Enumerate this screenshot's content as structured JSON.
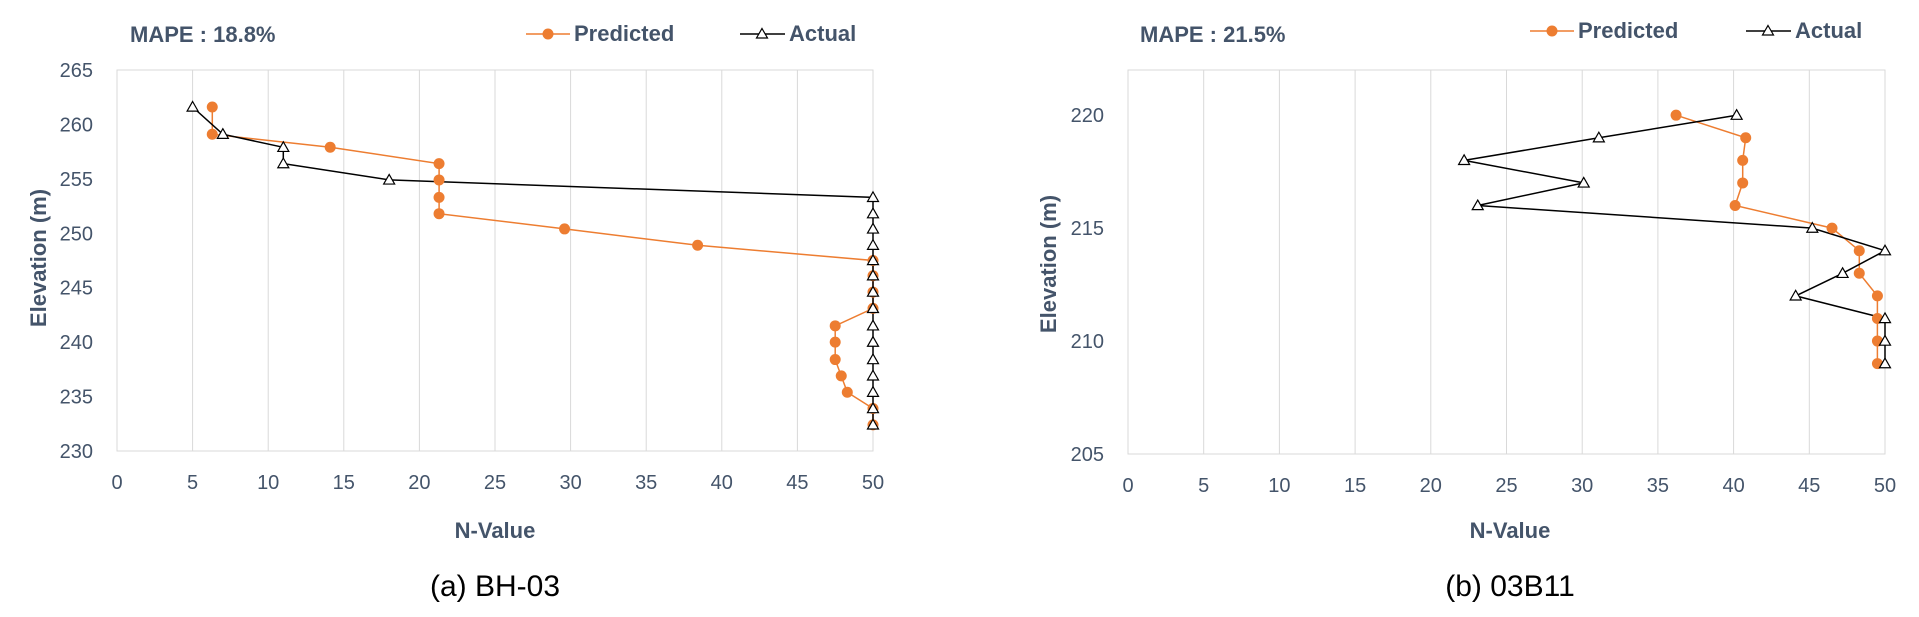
{
  "charts": [
    {
      "caption": "(a) BH-03",
      "mape": "MAPE : 18.8%",
      "chart_data": {
        "type": "scatter",
        "title": "",
        "xlabel": "N-Value",
        "ylabel": "Elevation (m)",
        "xlim": [
          0,
          50
        ],
        "ylim": [
          230,
          265
        ],
        "xticks": [
          0,
          5,
          10,
          15,
          20,
          25,
          30,
          35,
          40,
          45,
          50
        ],
        "yticks": [
          230,
          235,
          240,
          245,
          250,
          255,
          260,
          265
        ],
        "grid": "vertical",
        "legend_position": "top-right",
        "series": [
          {
            "name": "Predicted",
            "color": "#ED7D31",
            "marker": "circle",
            "points": [
              [
                6.3,
                261.6
              ],
              [
                6.3,
                259.1
              ],
              [
                14.1,
                257.9
              ],
              [
                21.3,
                256.4
              ],
              [
                21.3,
                254.9
              ],
              [
                21.3,
                253.3
              ],
              [
                21.3,
                251.8
              ],
              [
                29.6,
                250.4
              ],
              [
                38.4,
                248.9
              ],
              [
                50,
                247.5
              ],
              [
                50,
                246.1
              ],
              [
                50,
                244.6
              ],
              [
                50,
                243.1
              ],
              [
                47.5,
                241.5
              ],
              [
                47.5,
                240.0
              ],
              [
                47.5,
                238.4
              ],
              [
                47.9,
                236.9
              ],
              [
                48.3,
                235.4
              ],
              [
                50,
                233.9
              ],
              [
                50,
                232.4
              ]
            ]
          },
          {
            "name": "Actual",
            "color": "#000000",
            "marker": "triangle",
            "points": [
              [
                5,
                261.6
              ],
              [
                7,
                259.1
              ],
              [
                11,
                257.9
              ],
              [
                11,
                256.4
              ],
              [
                18,
                254.9
              ],
              [
                50,
                253.3
              ],
              [
                50,
                251.8
              ],
              [
                50,
                250.4
              ],
              [
                50,
                248.9
              ],
              [
                50,
                247.5
              ],
              [
                50,
                246.1
              ],
              [
                50,
                244.6
              ],
              [
                50,
                243.1
              ],
              [
                50,
                241.5
              ],
              [
                50,
                240.0
              ],
              [
                50,
                238.4
              ],
              [
                50,
                236.9
              ],
              [
                50,
                235.4
              ],
              [
                50,
                233.9
              ],
              [
                50,
                232.4
              ]
            ]
          }
        ]
      }
    },
    {
      "caption": "(b) 03B11",
      "mape": "MAPE : 21.5%",
      "chart_data": {
        "type": "scatter",
        "title": "",
        "xlabel": "N-Value",
        "ylabel": "Elevation (m)",
        "xlim": [
          0,
          50
        ],
        "ylim": [
          205,
          222
        ],
        "xticks": [
          0,
          5,
          10,
          15,
          20,
          25,
          30,
          35,
          40,
          45,
          50
        ],
        "yticks": [
          205,
          210,
          215,
          220
        ],
        "grid": "vertical",
        "legend_position": "top-right",
        "series": [
          {
            "name": "Predicted",
            "color": "#ED7D31",
            "marker": "circle",
            "points": [
              [
                36.2,
                220
              ],
              [
                40.8,
                219
              ],
              [
                40.6,
                218
              ],
              [
                40.6,
                217
              ],
              [
                40.1,
                216
              ],
              [
                46.5,
                215
              ],
              [
                48.3,
                214
              ],
              [
                48.3,
                213
              ],
              [
                49.5,
                212
              ],
              [
                49.5,
                211
              ],
              [
                49.5,
                210
              ],
              [
                49.5,
                209
              ]
            ]
          },
          {
            "name": "Actual",
            "color": "#000000",
            "marker": "triangle",
            "points": [
              [
                40.2,
                220
              ],
              [
                31.1,
                219
              ],
              [
                22.2,
                218
              ],
              [
                30.1,
                217
              ],
              [
                23.1,
                216
              ],
              [
                45.2,
                215
              ],
              [
                50,
                214
              ],
              [
                47.2,
                213
              ],
              [
                44.1,
                212
              ],
              [
                50,
                211
              ],
              [
                50,
                210
              ],
              [
                50,
                209
              ]
            ]
          }
        ]
      }
    }
  ]
}
